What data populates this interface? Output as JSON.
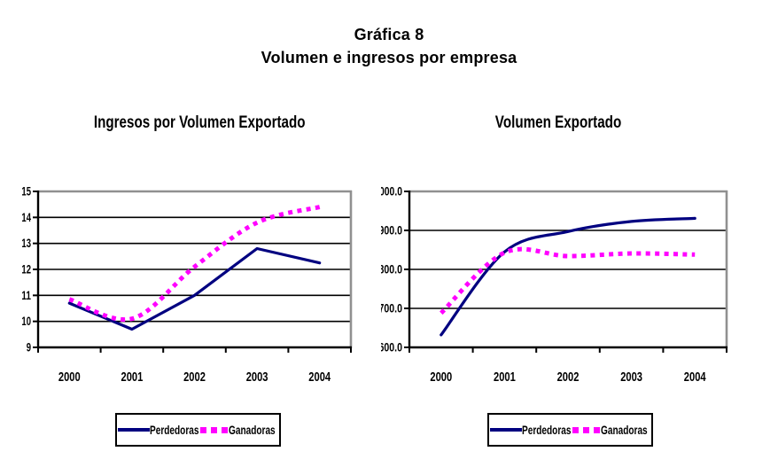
{
  "title": {
    "line1": "Gráfica 8",
    "line2": "Volumen e ingresos por empresa"
  },
  "colors": {
    "perdedoras": "#000080",
    "ganadoras": "#FF00FF",
    "gridline": "#000000",
    "plot_border_gray": "#909090"
  },
  "chart_data": [
    {
      "type": "line",
      "title": "Ingresos por Volumen Exportado",
      "categories": [
        "2000",
        "2001",
        "2002",
        "2003",
        "2004"
      ],
      "series": [
        {
          "name": "Perdedoras",
          "color": "#000080",
          "style": "solid",
          "smooth": false,
          "values": [
            10.7,
            9.7,
            11.0,
            12.8,
            12.25
          ]
        },
        {
          "name": "Ganadoras",
          "color": "#FF00FF",
          "style": "dashed",
          "smooth": true,
          "values": [
            10.85,
            10.1,
            12.1,
            13.8,
            14.4
          ]
        }
      ],
      "ylim": [
        9,
        15
      ],
      "ytick_step": 1,
      "ytick_labels": [
        "9",
        "10",
        "11",
        "12",
        "13",
        "14",
        "15"
      ],
      "grid": true,
      "legend_position": "bottom"
    },
    {
      "type": "line",
      "title": "Volumen Exportado",
      "categories": [
        "2000",
        "2001",
        "2002",
        "2003",
        "2004"
      ],
      "series": [
        {
          "name": "Perdedoras",
          "color": "#000080",
          "style": "solid",
          "smooth": true,
          "values": [
            632,
            845,
            897,
            923,
            931
          ]
        },
        {
          "name": "Ganadoras",
          "color": "#FF00FF",
          "style": "dashed",
          "smooth": true,
          "values": [
            688,
            843,
            834,
            841,
            838
          ]
        }
      ],
      "ylim": [
        600,
        1000
      ],
      "ytick_step": 100,
      "ytick_labels": [
        "600.0",
        "700.0",
        "800.0",
        "900.0",
        "1000.0"
      ],
      "grid": true,
      "legend_position": "bottom"
    }
  ]
}
